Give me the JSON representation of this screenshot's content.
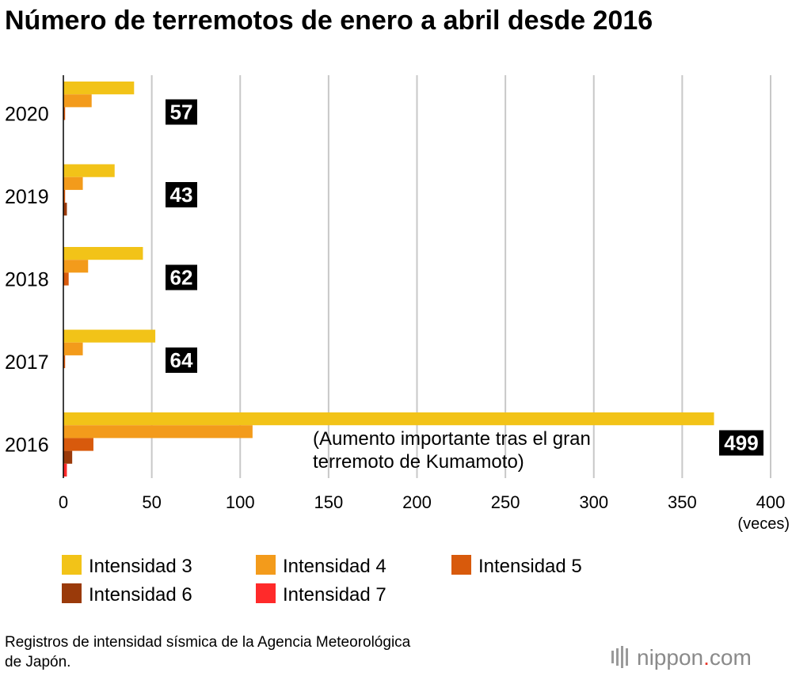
{
  "chart_data": {
    "type": "bar",
    "orientation": "horizontal",
    "title": "Número de terremotos de enero a abril desde 2016",
    "categories": [
      "2020",
      "2019",
      "2018",
      "2017",
      "2016"
    ],
    "series": [
      {
        "name": "Intensidad 3",
        "color": "#f2c318",
        "values": [
          40,
          29,
          45,
          52,
          368
        ]
      },
      {
        "name": "Intensidad 4",
        "color": "#f39b1b",
        "values": [
          16,
          11,
          14,
          11,
          107
        ]
      },
      {
        "name": "Intensidad 5",
        "color": "#d85a0c",
        "values": [
          1,
          1,
          3,
          1,
          17
        ]
      },
      {
        "name": "Intensidad 6",
        "color": "#9a3a0a",
        "values": [
          0,
          2,
          0,
          0,
          5
        ]
      },
      {
        "name": "Intensidad 7",
        "color": "#ff2a2a",
        "values": [
          0,
          0,
          0,
          0,
          2
        ]
      }
    ],
    "totals": [
      "57",
      "43",
      "62",
      "64",
      "499"
    ],
    "xlim": [
      0,
      400
    ],
    "xticks": [
      "0",
      "50",
      "100",
      "150",
      "200",
      "250",
      "300",
      "350",
      "400"
    ],
    "xunit": "(veces)",
    "grid": true,
    "annotation": {
      "category": "2016",
      "lines": [
        "(Aumento importante tras el gran",
        "terremoto de Kumamoto)"
      ]
    },
    "legend": {
      "position": "bottom"
    }
  },
  "source": {
    "lines": [
      "Registros de intensidad sísmica de la Agencia Meteorológica",
      "de Japón."
    ]
  },
  "brand": {
    "name": "nippon",
    "dot": ".",
    "suffix": "com",
    "dot_color": "#e83a2e"
  }
}
